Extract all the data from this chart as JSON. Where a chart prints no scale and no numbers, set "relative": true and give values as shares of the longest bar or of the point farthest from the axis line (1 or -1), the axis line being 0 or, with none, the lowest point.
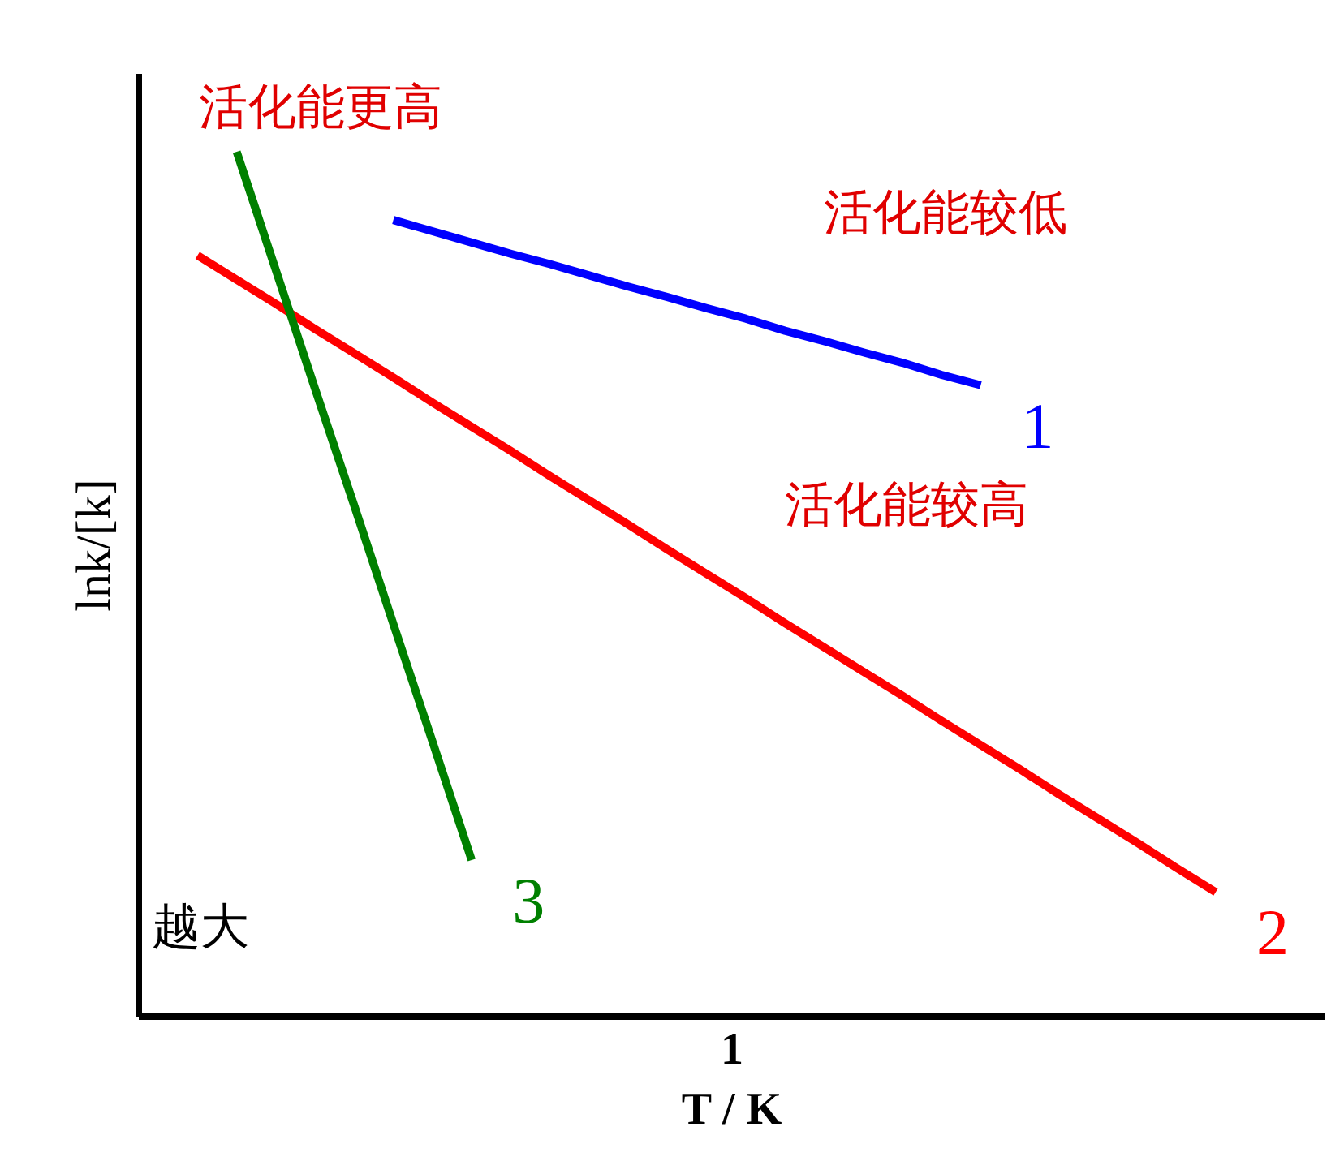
{
  "chart_data": {
    "type": "line",
    "relative": true,
    "xlabel": "1\nT / K",
    "ylabel": "lnk/[k]",
    "grid": false,
    "categories": [
      null,
      null,
      null,
      null,
      null,
      null,
      null,
      null,
      null,
      null,
      null,
      null,
      null,
      null,
      null,
      null,
      null,
      null,
      null,
      null,
      null,
      null,
      null,
      null,
      null,
      null,
      null,
      null,
      null,
      null
    ],
    "series": [
      {
        "name": "1",
        "color": "#0000ff",
        "values": [
          null,
          null,
          null,
          null,
          null,
          null,
          0.921,
          0.908,
          0.895,
          0.882,
          0.87,
          0.857,
          0.844,
          0.832,
          0.819,
          0.807,
          0.793,
          0.781,
          0.768,
          0.756,
          0.742,
          0.73,
          null,
          null,
          null,
          null,
          null,
          null,
          null,
          null
        ]
      },
      {
        "name": "2",
        "color": "#ff0000",
        "values": [
          null,
          0.88,
          0.852,
          0.824,
          0.795,
          0.767,
          0.739,
          0.71,
          0.682,
          0.654,
          0.625,
          0.597,
          0.569,
          0.54,
          0.512,
          0.484,
          0.455,
          0.427,
          0.399,
          0.371,
          0.342,
          0.314,
          0.286,
          0.257,
          0.229,
          0.201,
          0.172,
          0.144,
          null,
          null
        ]
      },
      {
        "name": "3",
        "color": "#008000",
        "values": [
          null,
          null,
          1.0,
          0.863,
          0.726,
          0.591,
          0.454,
          0.318,
          0.181,
          null,
          null,
          null,
          null,
          null,
          null,
          null,
          null,
          null,
          null,
          null,
          null,
          null,
          null,
          null,
          null,
          null,
          null,
          null,
          null,
          null
        ]
      }
    ],
    "annotations": [
      "活化能更高",
      "活化能较低",
      "活化能较高",
      "越大"
    ]
  }
}
